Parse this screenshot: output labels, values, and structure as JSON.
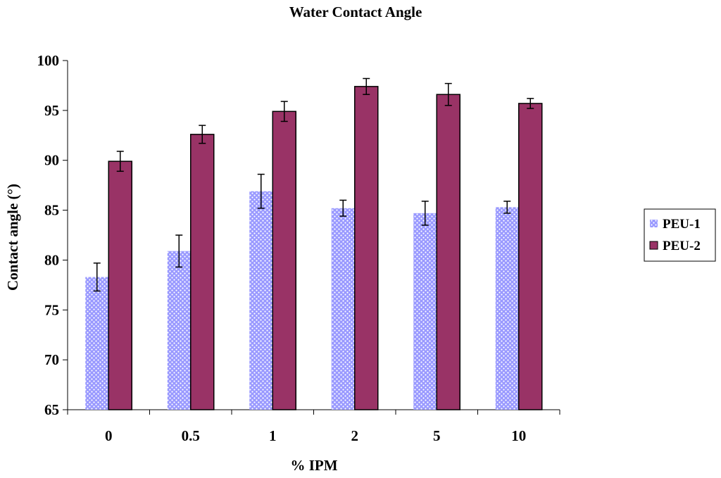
{
  "chart_data": {
    "type": "bar",
    "title": "Water Contact Angle",
    "xlabel": "% IPM",
    "ylabel": "Contact angle (°)",
    "ylim": [
      65,
      100
    ],
    "yticks": [
      65,
      70,
      75,
      80,
      85,
      90,
      95,
      100
    ],
    "grid": false,
    "legend_position": "right",
    "categories": [
      "0",
      "0.5",
      "1",
      "2",
      "5",
      "10"
    ],
    "series": [
      {
        "name": "PEU-1",
        "color": "#9999ff",
        "pattern": "dotted",
        "values": [
          78.3,
          80.9,
          86.9,
          85.2,
          84.7,
          85.3
        ],
        "errors": [
          1.4,
          1.6,
          1.7,
          0.8,
          1.2,
          0.6
        ]
      },
      {
        "name": "PEU-2",
        "color": "#993366",
        "pattern": "solid",
        "values": [
          89.9,
          92.6,
          94.9,
          97.4,
          96.6,
          95.7
        ],
        "errors": [
          1.0,
          0.9,
          1.0,
          0.8,
          1.1,
          0.5
        ]
      }
    ]
  }
}
